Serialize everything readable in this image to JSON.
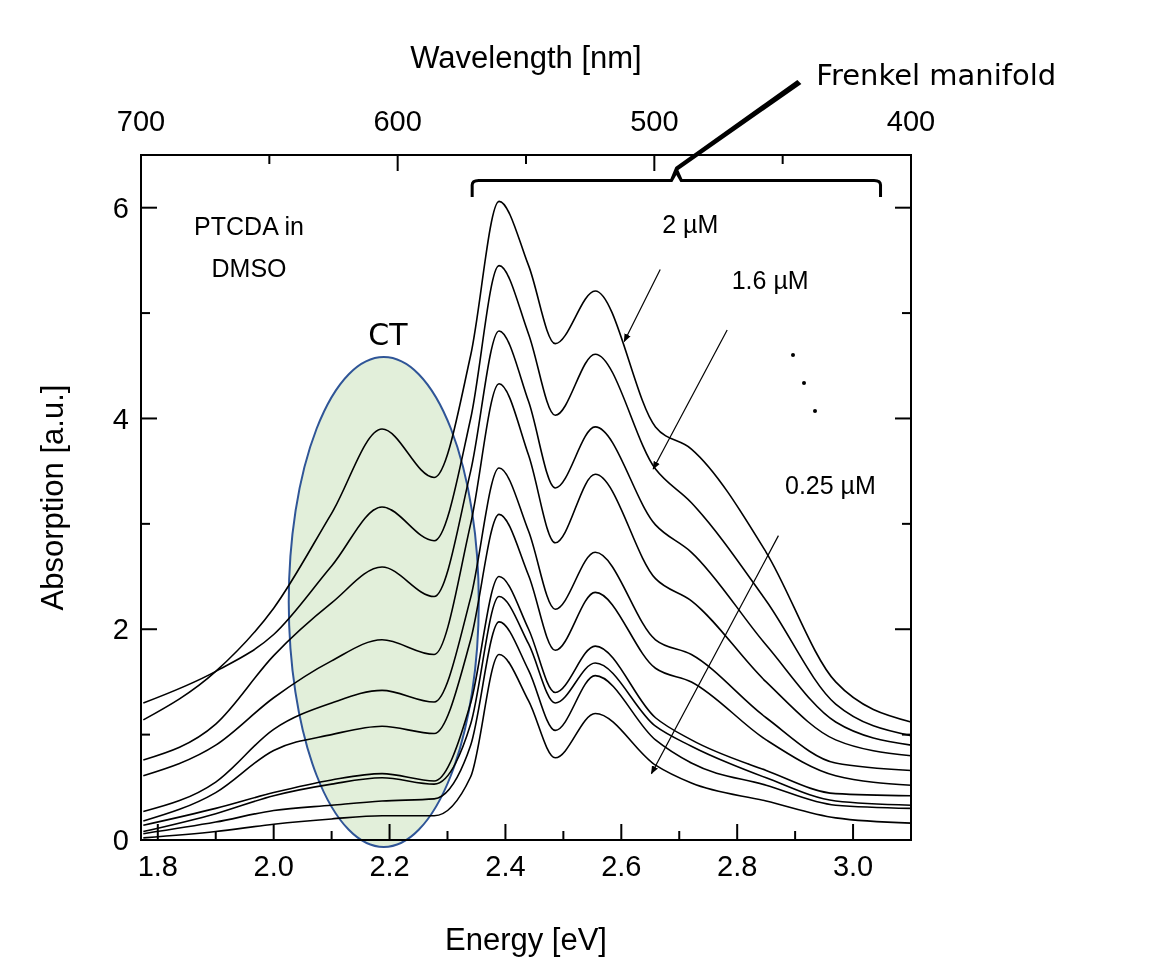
{
  "chart_data": {
    "type": "line",
    "xlabel": "Energy [eV]",
    "ylabel": "Absorption [a.u.]",
    "x2label": "Wavelength [nm]",
    "xlim": [
      1.771,
      3.1
    ],
    "ylim": [
      0,
      6.5
    ],
    "xticks": [
      {
        "value": 1.8,
        "label": "1.8"
      },
      {
        "value": 1.9,
        "label": null
      },
      {
        "value": 2,
        "label": "2.0"
      },
      {
        "value": 2.1,
        "label": null
      },
      {
        "value": 2.2,
        "label": "2.2"
      },
      {
        "value": 2.3,
        "label": null
      },
      {
        "value": 2.4,
        "label": "2.4"
      },
      {
        "value": 2.5,
        "label": null
      },
      {
        "value": 2.6,
        "label": "2.6"
      },
      {
        "value": 2.7,
        "label": null
      },
      {
        "value": 2.8,
        "label": "2.8"
      },
      {
        "value": 2.9,
        "label": null
      },
      {
        "value": 3,
        "label": "3.0"
      }
    ],
    "yticks": [
      0,
      {
        "value": 1,
        "label": null
      },
      2,
      {
        "value": 3,
        "label": null
      },
      4,
      {
        "value": 5,
        "label": null
      },
      6
    ],
    "x2lim": [
      700,
      400
    ],
    "x2ticks": [
      700,
      {
        "value": 650,
        "label": null
      },
      600,
      {
        "value": 550,
        "label": null
      },
      500,
      {
        "value": 450,
        "label": null
      },
      400
    ],
    "grid": false,
    "line_style": "solid",
    "bands": [
      {
        "axis": "x",
        "from": 2.026,
        "to": 2.354,
        "color": "#e2efda"
      }
    ],
    "x": [
      1.775,
      1.9,
      2.0,
      2.1,
      2.187,
      2.277,
      2.34,
      2.389,
      2.44,
      2.486,
      2.555,
      2.659,
      2.721,
      2.85,
      2.97,
      3.1
    ],
    "series": [
      {
        "color": "#000000",
        "values": [
          1.14,
          1.6,
          2.2,
          3.1,
          3.9,
          3.44,
          4.6,
          6.06,
          5.45,
          4.71,
          5.21,
          3.92,
          3.71,
          2.73,
          1.5,
          1.12
        ]
      },
      {
        "color": "#000000",
        "values": [
          1.3,
          1.6,
          1.95,
          2.6,
          3.16,
          2.84,
          4.0,
          5.45,
          4.8,
          4.03,
          4.61,
          3.52,
          3.2,
          2.27,
          1.29,
          0.99
        ]
      },
      {
        "color": "#000000",
        "values": [
          0.76,
          1.1,
          1.75,
          2.25,
          2.59,
          2.31,
          3.5,
          4.83,
          4.16,
          3.34,
          3.92,
          2.99,
          2.73,
          1.85,
          1.12,
          0.9
        ]
      },
      {
        "color": "#000000",
        "values": [
          0.61,
          0.9,
          1.35,
          1.7,
          1.9,
          1.76,
          3.0,
          4.33,
          3.65,
          2.82,
          3.47,
          2.48,
          2.27,
          1.5,
          0.95,
          0.8
        ]
      },
      {
        "color": "#000000",
        "values": [
          0.27,
          0.55,
          1.05,
          1.3,
          1.42,
          1.31,
          2.3,
          3.53,
          2.93,
          2.19,
          2.73,
          1.9,
          1.76,
          1.16,
          0.73,
          0.66
        ]
      },
      {
        "color": "#000000",
        "values": [
          0.18,
          0.45,
          0.85,
          1.0,
          1.08,
          1.01,
          1.9,
          3.09,
          2.51,
          1.8,
          2.35,
          1.63,
          1.5,
          0.95,
          0.61,
          0.52
        ]
      },
      {
        "color": "#000000",
        "values": [
          0.14,
          0.3,
          0.45,
          0.57,
          0.63,
          0.56,
          1.3,
          2.5,
          2.0,
          1.4,
          1.84,
          1.16,
          0.95,
          0.66,
          0.44,
          0.42
        ]
      },
      {
        "color": "#000000",
        "values": [
          0.08,
          0.25,
          0.42,
          0.53,
          0.59,
          0.53,
          1.1,
          2.31,
          1.86,
          1.3,
          1.68,
          1.08,
          0.89,
          0.59,
          0.37,
          0.33
        ]
      },
      {
        "color": "#000000",
        "values": [
          0.06,
          0.17,
          0.28,
          0.33,
          0.37,
          0.39,
          0.9,
          2.07,
          1.61,
          1.04,
          1.56,
          0.95,
          0.73,
          0.52,
          0.33,
          0.3
        ]
      },
      {
        "color": "#000000",
        "values": [
          0.02,
          0.08,
          0.15,
          0.2,
          0.23,
          0.23,
          0.6,
          1.76,
          1.32,
          0.78,
          1.2,
          0.71,
          0.54,
          0.37,
          0.21,
          0.16
        ]
      }
    ],
    "annotations": [
      "PTCDA in\nDMSO",
      "CT",
      "Frenkel manifold",
      {
        "text": "2 µM",
        "x": 2.605,
        "y": 4.73
      },
      "1.6 µM",
      "0.25 µM"
    ]
  }
}
